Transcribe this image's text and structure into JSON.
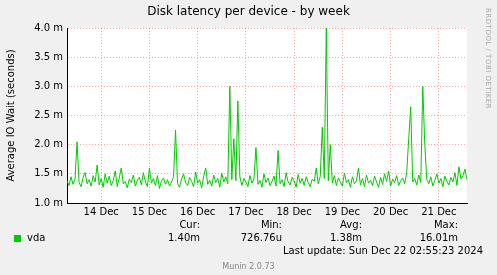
{
  "chart_data": {
    "type": "line",
    "title": "Disk latency per device - by week",
    "y_label": "Average IO Wait (seconds)",
    "categories": [
      null,
      null,
      null,
      null,
      null,
      null,
      null,
      null,
      null,
      null,
      null,
      null,
      null,
      null,
      null,
      null,
      null,
      "14 Dec",
      null,
      null,
      null,
      null,
      null,
      null,
      null,
      null,
      null,
      null,
      null,
      null,
      null,
      null,
      null,
      null,
      null,
      null,
      null,
      null,
      null,
      null,
      null,
      "15 Dec",
      null,
      null,
      null,
      null,
      null,
      null,
      null,
      null,
      null,
      null,
      null,
      null,
      null,
      null,
      null,
      null,
      null,
      null,
      null,
      null,
      null,
      null,
      null,
      "16 Dec",
      null,
      null,
      null,
      null,
      null,
      null,
      null,
      null,
      null,
      null,
      null,
      null,
      null,
      null,
      null,
      null,
      null,
      null,
      null,
      null,
      null,
      null,
      null,
      "17 Dec",
      null,
      null,
      null,
      null,
      null,
      null,
      null,
      null,
      null,
      null,
      null,
      null,
      null,
      null,
      null,
      null,
      null,
      null,
      null,
      null,
      null,
      null,
      null,
      "18 Dec",
      null,
      null,
      null,
      null,
      null,
      null,
      null,
      null,
      null,
      null,
      null,
      null,
      null,
      null,
      null,
      null,
      null,
      null,
      null,
      null,
      null,
      null,
      null,
      "19 Dec",
      null,
      null,
      null,
      null,
      null,
      null,
      null,
      null,
      null,
      null,
      null,
      null,
      null,
      null,
      null,
      null,
      null,
      null,
      null,
      null,
      null,
      null,
      null,
      "20 Dec",
      null,
      null,
      null,
      null,
      null,
      null,
      null,
      null,
      null,
      null,
      null,
      null,
      null,
      null,
      null,
      null,
      null,
      null,
      null,
      null,
      null,
      null,
      null,
      "21 Dec",
      null,
      null,
      null,
      null,
      null,
      null,
      null,
      null,
      null,
      null,
      null,
      null,
      null,
      null
    ],
    "series": [
      {
        "name": "vda",
        "color": "#00cc00",
        "values": [
          0.00138,
          0.0013,
          0.00145,
          0.00132,
          0.00141,
          0.00205,
          0.00135,
          0.00128,
          0.00144,
          0.00152,
          0.00133,
          0.0014,
          0.00129,
          0.00147,
          0.00136,
          0.00165,
          0.00131,
          0.00142,
          0.00127,
          0.0015,
          0.00134,
          0.00146,
          0.0013,
          0.00138,
          0.00155,
          0.00128,
          0.00143,
          0.0016,
          0.00133,
          0.00137,
          0.00126,
          0.00141,
          0.00135,
          0.00148,
          0.00129,
          0.00139,
          0.00144,
          0.00131,
          0.00152,
          0.00136,
          0.00128,
          0.0016,
          0.00134,
          0.00142,
          0.0013,
          0.00147,
          0.00125,
          0.00138,
          0.00143,
          0.00132,
          0.0014,
          0.00129,
          0.00136,
          0.00145,
          0.00225,
          0.00133,
          0.00127,
          0.00141,
          0.0015,
          0.00135,
          0.0013,
          0.00144,
          0.00137,
          0.00128,
          0.00153,
          0.00134,
          0.0014,
          0.00126,
          0.00146,
          0.0016,
          0.00132,
          0.00139,
          0.00129,
          0.00148,
          0.00135,
          0.00142,
          0.00127,
          0.00151,
          0.00136,
          0.00145,
          0.00133,
          0.003,
          0.0014,
          0.0021,
          0.00138,
          0.00275,
          0.00145,
          0.0013,
          0.00142,
          0.00136,
          0.00128,
          0.00147,
          0.00134,
          0.00141,
          0.00195,
          0.00132,
          0.00139,
          0.00127,
          0.0015,
          0.00135,
          0.00143,
          0.0013,
          0.00137,
          0.00146,
          0.00129,
          0.0019,
          0.00133,
          0.0014,
          0.00128,
          0.00152,
          0.00136,
          0.00131,
          0.00144,
          0.00138,
          0.00127,
          0.00149,
          0.00134,
          0.00142,
          0.0013,
          0.00145,
          0.00135,
          0.00128,
          0.00141,
          0.00137,
          0.0016,
          0.00133,
          0.00146,
          0.0023,
          0.00142,
          0.004,
          0.00138,
          0.002,
          0.00134,
          0.00147,
          0.0013,
          0.00143,
          0.00136,
          0.00129,
          0.00151,
          0.00135,
          0.0014,
          0.00127,
          0.00145,
          0.00133,
          0.00138,
          0.0016,
          0.00131,
          0.00142,
          0.00128,
          0.00148,
          0.00134,
          0.00139,
          0.0013,
          0.00146,
          0.00136,
          0.00127,
          0.00144,
          0.00132,
          0.0015,
          0.00137,
          0.00155,
          0.00129,
          0.00141,
          0.00135,
          0.00147,
          0.0013,
          0.00138,
          0.00143,
          0.00133,
          0.00152,
          0.0021,
          0.00265,
          0.00136,
          0.00142,
          0.00131,
          0.00148,
          0.00135,
          0.003,
          0.002,
          0.0014,
          0.00133,
          0.00145,
          0.00129,
          0.00139,
          0.0015,
          0.00134,
          0.00142,
          0.00128,
          0.00146,
          0.00137,
          0.00131,
          0.00144,
          0.00136,
          0.00152,
          0.0013,
          0.00162,
          0.00141,
          0.00147,
          0.00158,
          0.0014
        ],
        "stats": [
          {
            "label": "Cur:",
            "value": "1.40m"
          },
          {
            "label": "Min:",
            "value": "726.76u"
          },
          {
            "label": "Avg:",
            "value": "1.38m"
          },
          {
            "label": "Max:",
            "value": "16.01m"
          }
        ]
      }
    ],
    "ylim": [
      0.001,
      0.004
    ],
    "yticks": [
      {
        "value": 0.001,
        "label": "1.0 m"
      },
      {
        "value": 0.0015,
        "label": "1.5 m"
      },
      {
        "value": 0.002,
        "label": "2.0 m"
      },
      {
        "value": 0.0025,
        "label": "2.5 m"
      },
      {
        "value": 0.003,
        "label": "3.0 m"
      },
      {
        "value": 0.0035,
        "label": "3.5 m"
      },
      {
        "value": 0.004,
        "label": "4.0 m"
      }
    ],
    "grid": true,
    "legend": "bottom",
    "last_update": "Last update: Sun Dec 22 02:55:23 2024",
    "footer": "Munin 2.0.73",
    "watermark": "RRDTOOL / TOBI OETIKER"
  }
}
